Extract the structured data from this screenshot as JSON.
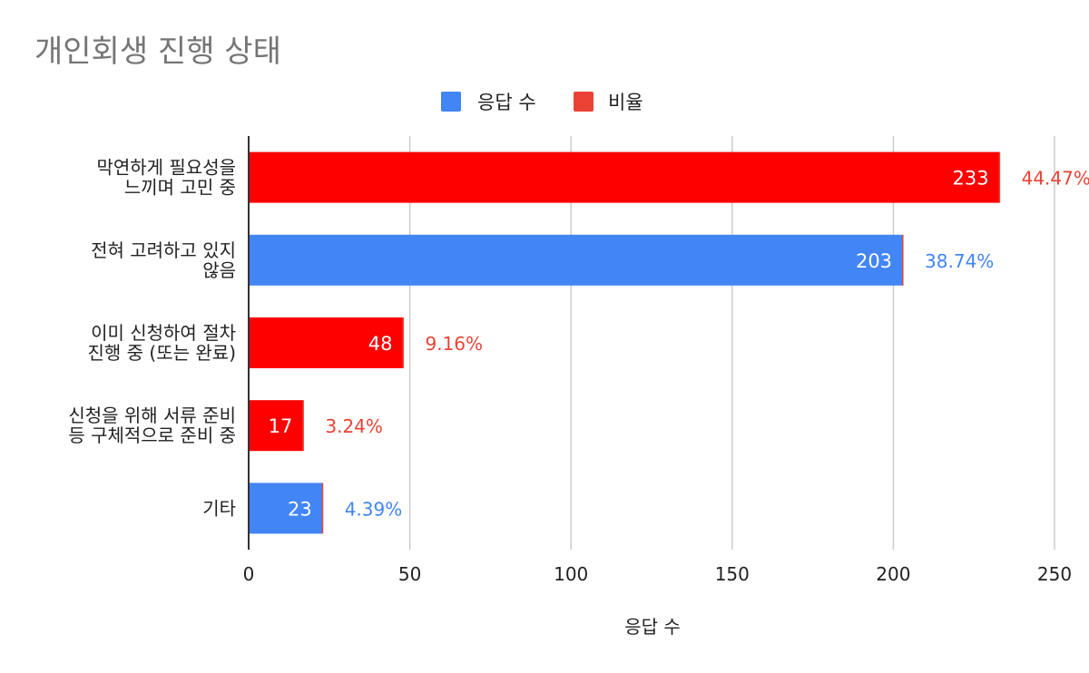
{
  "chart_data": {
    "type": "bar",
    "orientation": "horizontal",
    "title": "개인회생 진행 상태",
    "xlabel": "응답 수",
    "ylabel": "",
    "xlim": [
      0,
      250
    ],
    "x_ticks": [
      "0",
      "50",
      "100",
      "150",
      "200",
      "250"
    ],
    "grid": true,
    "legend_position": "top",
    "legend": [
      {
        "name": "응답 수",
        "color": "#4285f4"
      },
      {
        "name": "비율",
        "color": "#ea4335"
      }
    ],
    "categories": [
      {
        "lines": [
          "막연하게 필요성을",
          "느끼며 고민 중"
        ],
        "value": 233,
        "value_label": "233",
        "ratio": "44.47%",
        "bar_color": "#ff0000",
        "ratio_color": "#ea4335"
      },
      {
        "lines": [
          "전혀 고려하고 있지",
          "않음"
        ],
        "value": 203,
        "value_label": "203",
        "ratio": "38.74%",
        "bar_color": "#4285f4",
        "ratio_color": "#4285f4"
      },
      {
        "lines": [
          "이미 신청하여 절차",
          "진행 중 (또는 완료)"
        ],
        "value": 48,
        "value_label": "48",
        "ratio": "9.16%",
        "bar_color": "#ff0000",
        "ratio_color": "#ea4335"
      },
      {
        "lines": [
          "신청을 위해 서류 준비",
          "등 구체적으로 준비 중"
        ],
        "value": 17,
        "value_label": "17",
        "ratio": "3.24%",
        "bar_color": "#ff0000",
        "ratio_color": "#ea4335"
      },
      {
        "lines": [
          "기타"
        ],
        "value": 23,
        "value_label": "23",
        "ratio": "4.39%",
        "bar_color": "#4285f4",
        "ratio_color": "#4285f4"
      }
    ]
  }
}
